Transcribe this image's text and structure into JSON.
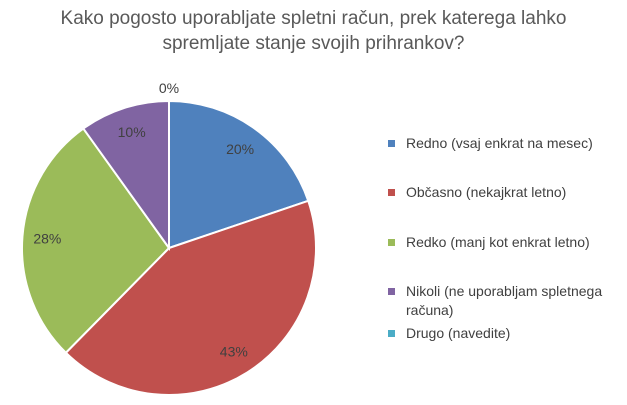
{
  "chart_data": {
    "type": "pie",
    "title_lines": [
      "Kako pogosto uporabljate spletni račun, prek katerega lahko",
      "spremljate stanje svojih prihrankov?"
    ],
    "categories": [
      "Redno (vsaj enkrat na mesec)",
      "Občasno (nekajkrat letno)",
      "Redko (manj kot enkrat letno)",
      "Nikoli (ne uporabljam spletnega računa)",
      "Drugo (navedite)"
    ],
    "values": [
      20,
      43,
      28,
      10,
      0
    ],
    "labels": [
      "20%",
      "43%",
      "28%",
      "10%",
      "0%"
    ],
    "colors": [
      "#4F81BD",
      "#C0504D",
      "#9BBB59",
      "#8064A2",
      "#4BACC6"
    ],
    "legend_position": "right"
  }
}
